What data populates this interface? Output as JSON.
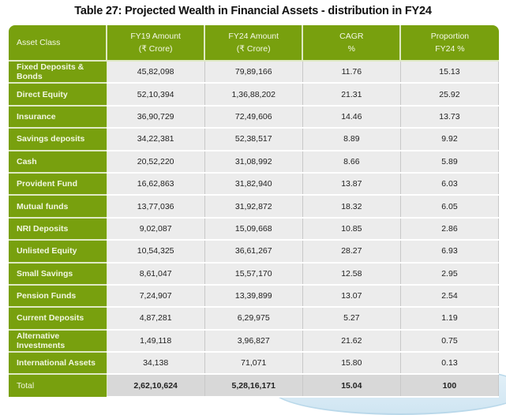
{
  "title": "Table 27: Projected Wealth in Financial Assets - distribution in FY24",
  "headers": [
    {
      "line1": "Asset Class",
      "line2": ""
    },
    {
      "line1": "FY19 Amount",
      "line2": "(₹ Crore)"
    },
    {
      "line1": "FY24 Amount",
      "line2": "(₹ Crore)"
    },
    {
      "line1": "CAGR",
      "line2": "%"
    },
    {
      "line1": "Proportion",
      "line2": "FY24 %"
    }
  ],
  "rows": [
    [
      "Fixed Deposits & Bonds",
      "45,82,098",
      "79,89,166",
      "11.76",
      "15.13"
    ],
    [
      "Direct Equity",
      "52,10,394",
      "1,36,88,202",
      "21.31",
      "25.92"
    ],
    [
      "Insurance",
      "36,90,729",
      "72,49,606",
      "14.46",
      "13.73"
    ],
    [
      "Savings deposits",
      "34,22,381",
      "52,38,517",
      "8.89",
      "9.92"
    ],
    [
      "Cash",
      "20,52,220",
      "31,08,992",
      "8.66",
      "5.89"
    ],
    [
      "Provident Fund",
      "16,62,863",
      "31,82,940",
      "13.87",
      "6.03"
    ],
    [
      "Mutual funds",
      "13,77,036",
      "31,92,872",
      "18.32",
      "6.05"
    ],
    [
      "NRI Deposits",
      "9,02,087",
      "15,09,668",
      "10.85",
      "2.86"
    ],
    [
      "Unlisted Equity",
      "10,54,325",
      "36,61,267",
      "28.27",
      "6.93"
    ],
    [
      "Small Savings",
      "8,61,047",
      "15,57,170",
      "12.58",
      "2.95"
    ],
    [
      "Pension Funds",
      "7,24,907",
      "13,39,899",
      "13.07",
      "2.54"
    ],
    [
      "Current Deposits",
      "4,87,281",
      "6,29,975",
      "5.27",
      "1.19"
    ],
    [
      "Alternative Investments",
      "1,49,118",
      "3,96,827",
      "21.62",
      "0.75"
    ],
    [
      "International Assets",
      "34,138",
      "71,071",
      "15.80",
      "0.13"
    ]
  ],
  "total": [
    "Total",
    "2,62,10,624",
    "5,28,16,171",
    "15.04",
    "100"
  ],
  "colors": {
    "header_green": "#78a00e",
    "cell_gray": "#ececec",
    "total_gray": "#d8d8d8"
  }
}
